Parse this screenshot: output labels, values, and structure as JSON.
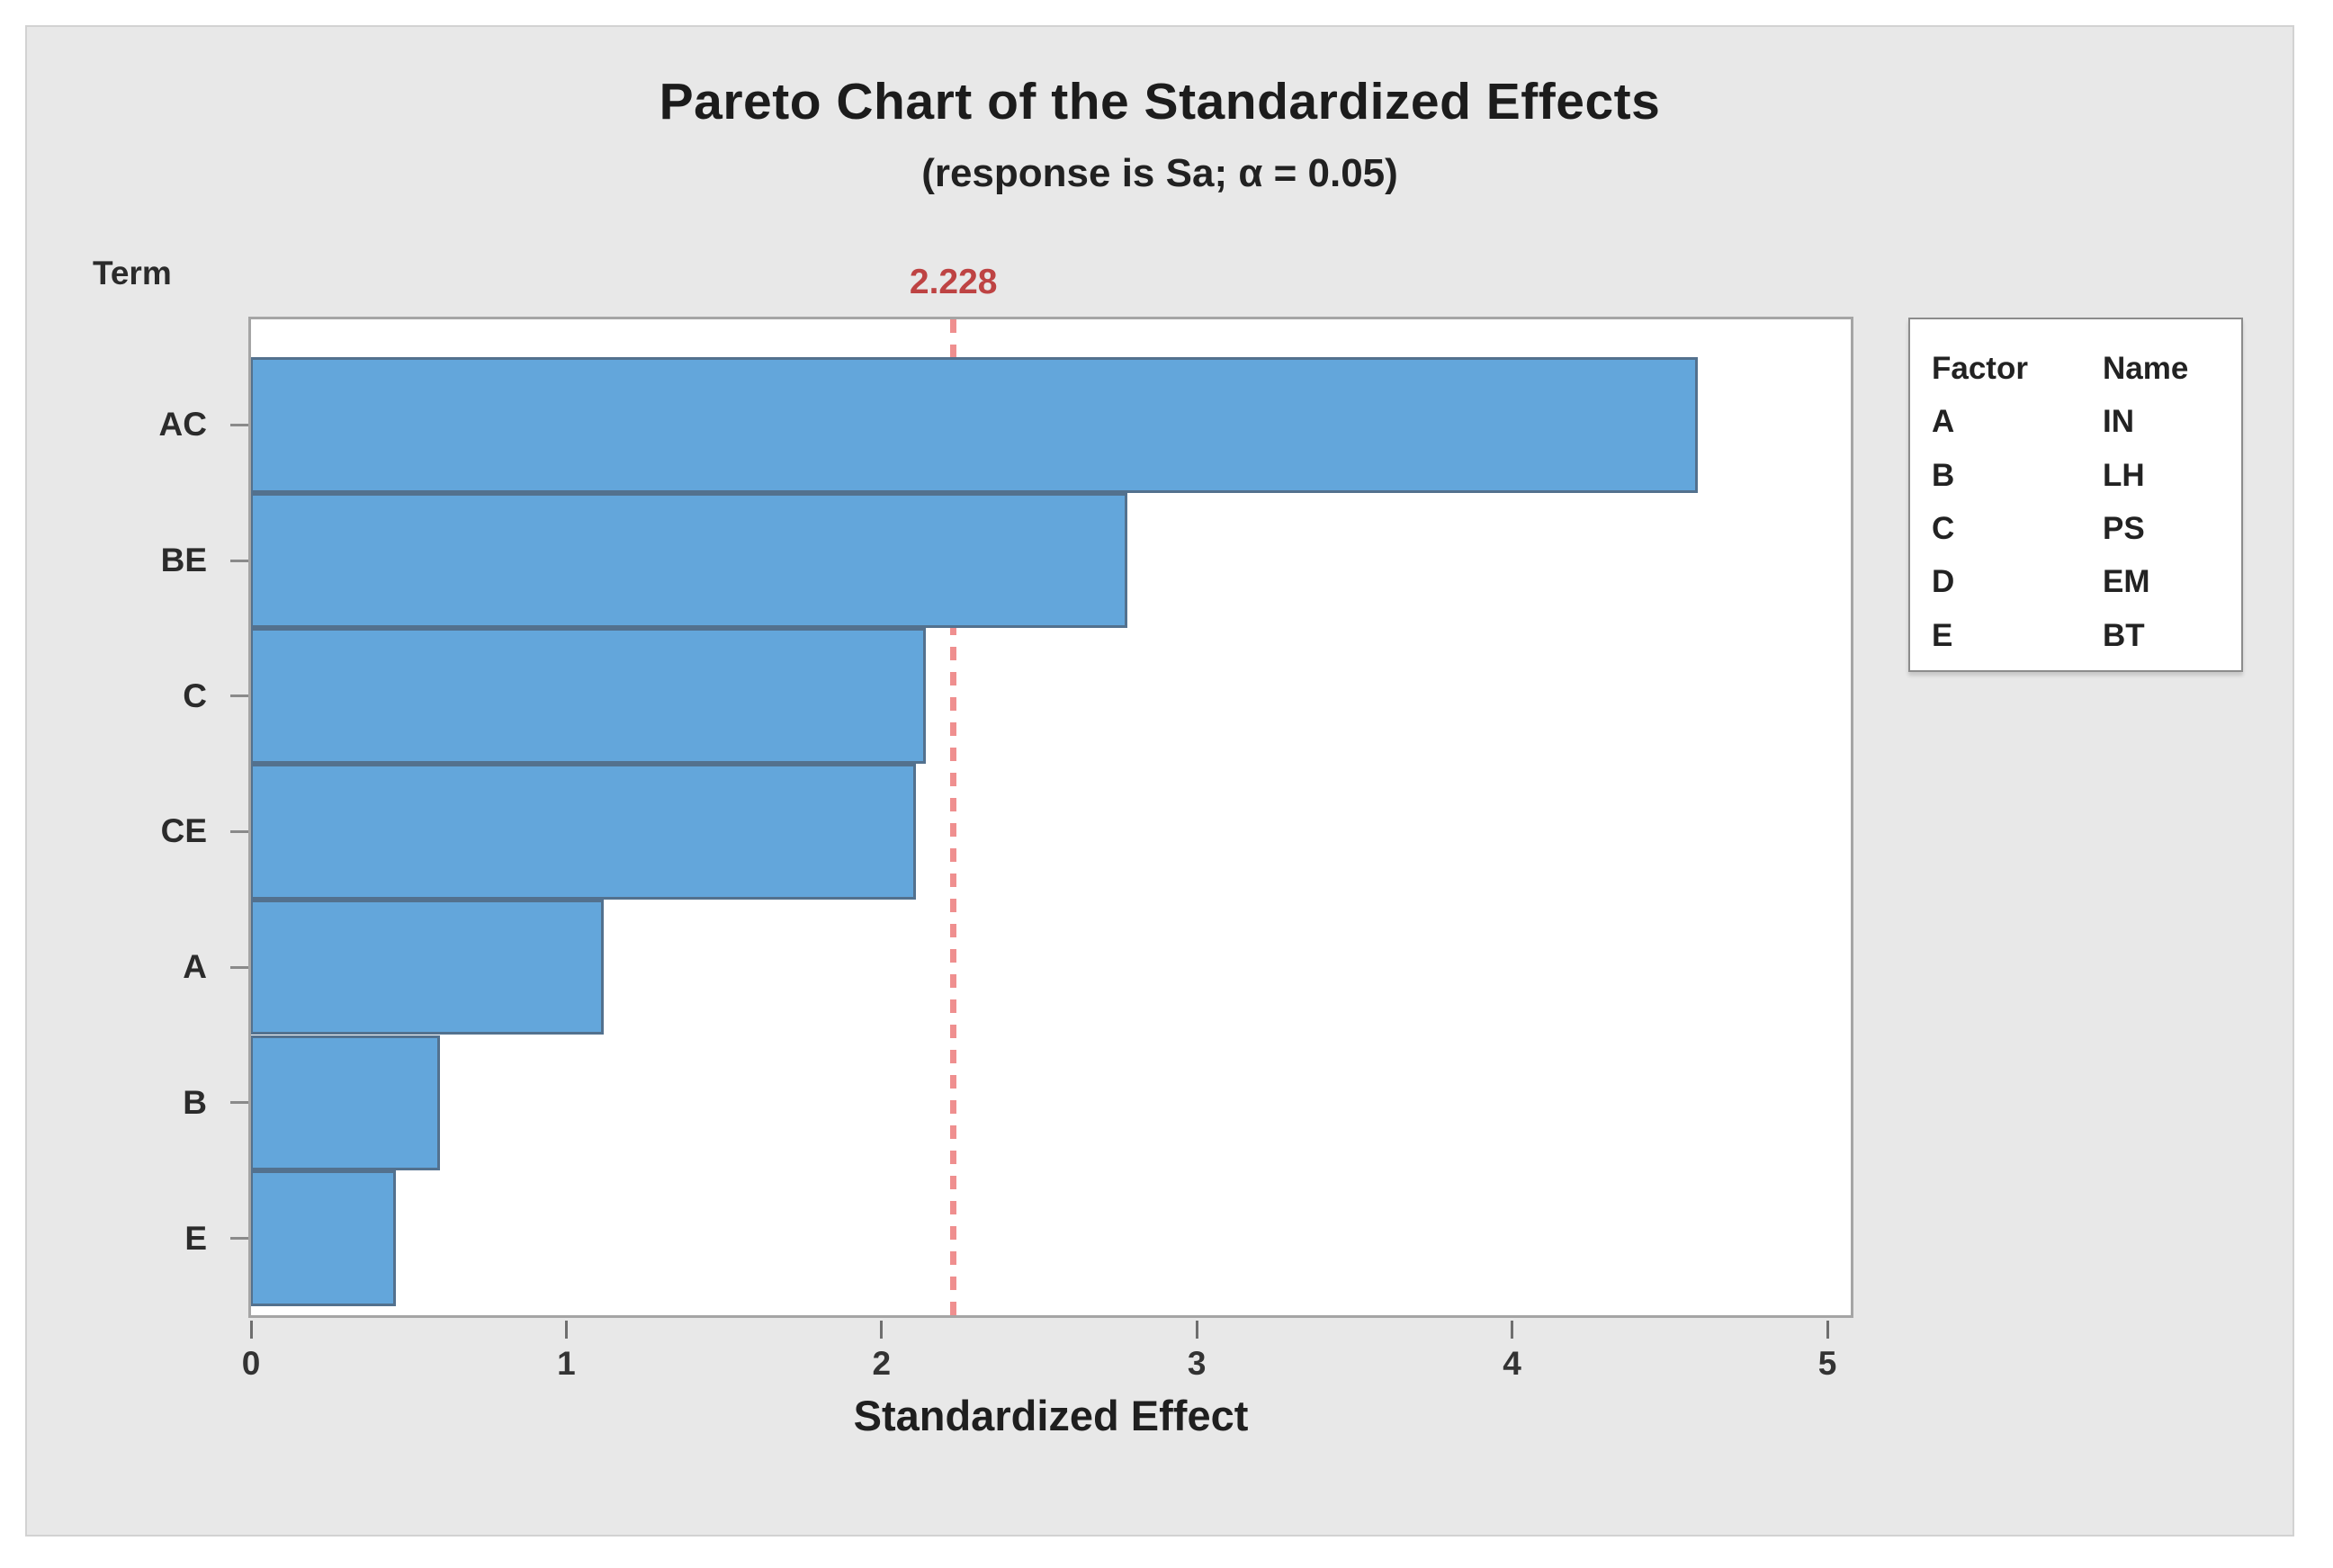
{
  "figure": {
    "title": "Pareto Chart of the Standardized Effects",
    "subtitle": "(response is Sa; α = 0.05)",
    "y_axis_title": "Term",
    "x_axis_title": "Standardized Effect"
  },
  "chart_data": {
    "type": "bar",
    "orientation": "horizontal",
    "title": "Pareto Chart of the Standardized Effects",
    "subtitle": "(response is Sa; α = 0.05)",
    "categories": [
      "AC",
      "BE",
      "C",
      "CE",
      "A",
      "B",
      "E"
    ],
    "values": [
      4.59,
      2.78,
      2.14,
      2.11,
      1.12,
      0.6,
      0.46
    ],
    "xlabel": "Standardized Effect",
    "ylabel": "Term",
    "xlim": [
      0,
      5
    ],
    "x_ticks": [
      0,
      1,
      2,
      3,
      4,
      5
    ],
    "grid": false,
    "legend_position": "right",
    "reference_line": {
      "value": 2.228,
      "label": "2.228"
    },
    "colors": {
      "bar_fill": "#63A6DB",
      "bar_border": "#53718E",
      "reference_line": "#EF8F8F",
      "reference_label": "#BE4343",
      "panel_background": "#E8E8E8",
      "plot_background": "#FFFFFF"
    }
  },
  "legend": {
    "columns": [
      "Factor",
      "Name"
    ],
    "rows": [
      {
        "factor": "A",
        "name": "IN"
      },
      {
        "factor": "B",
        "name": "LH"
      },
      {
        "factor": "C",
        "name": "PS"
      },
      {
        "factor": "D",
        "name": "EM"
      },
      {
        "factor": "E",
        "name": "BT"
      }
    ]
  }
}
